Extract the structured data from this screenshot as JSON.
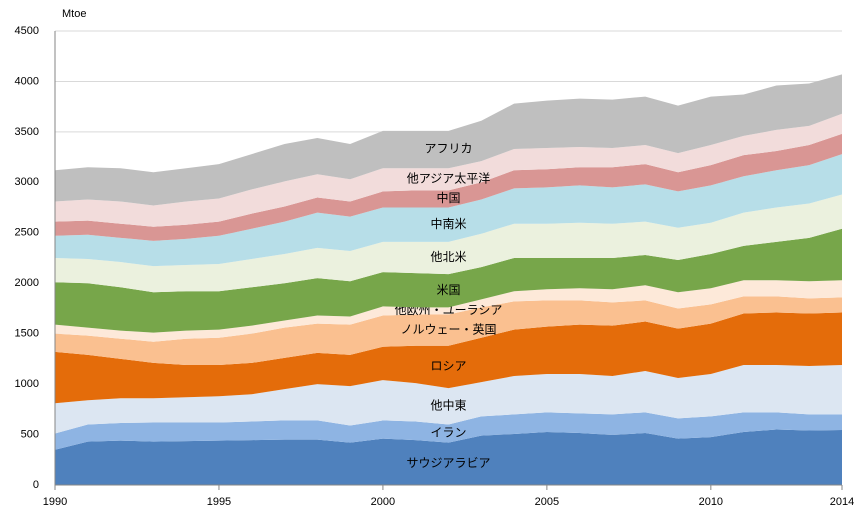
{
  "chart_data": {
    "type": "stacked_area",
    "y_unit": "Mtoe",
    "x": [
      1990,
      1991,
      1992,
      1993,
      1994,
      1995,
      1996,
      1997,
      1998,
      1999,
      2000,
      2001,
      2002,
      2003,
      2004,
      2005,
      2006,
      2007,
      2008,
      2009,
      2010,
      2011,
      2012,
      2013,
      2014
    ],
    "xlim": [
      1990,
      2014
    ],
    "xticks": [
      1990,
      1995,
      2000,
      2005,
      2010,
      2014
    ],
    "ylim": [
      0,
      4500
    ],
    "yticks": [
      0,
      500,
      1000,
      1500,
      2000,
      2500,
      3000,
      3500,
      4000,
      4500
    ],
    "grid": true,
    "series": [
      {
        "name": "サウジアラビア",
        "color": "#4f81bd",
        "values": [
          350,
          430,
          440,
          430,
          435,
          440,
          445,
          450,
          450,
          420,
          460,
          445,
          420,
          490,
          505,
          525,
          515,
          495,
          515,
          460,
          475,
          525,
          550,
          540,
          545
        ]
      },
      {
        "name": "イラン",
        "color": "#8eb4e3",
        "values": [
          160,
          170,
          175,
          190,
          185,
          180,
          185,
          190,
          190,
          170,
          180,
          185,
          180,
          190,
          195,
          195,
          195,
          205,
          205,
          200,
          205,
          195,
          170,
          160,
          155
        ]
      },
      {
        "name": "他中東",
        "color": "#dce6f2",
        "values": [
          300,
          240,
          245,
          240,
          250,
          260,
          270,
          310,
          360,
          390,
          400,
          380,
          360,
          340,
          380,
          380,
          390,
          380,
          410,
          400,
          420,
          470,
          470,
          480,
          490
        ]
      },
      {
        "name": "ロシア",
        "color": "#e46c0a",
        "values": [
          510,
          450,
          390,
          350,
          320,
          310,
          310,
          310,
          310,
          310,
          330,
          370,
          420,
          440,
          460,
          470,
          490,
          500,
          490,
          490,
          500,
          510,
          520,
          520,
          520
        ]
      },
      {
        "name": "ノルウェー・英国",
        "color": "#fac090",
        "values": [
          180,
          190,
          200,
          210,
          260,
          270,
          290,
          300,
          290,
          300,
          310,
          310,
          310,
          300,
          280,
          260,
          240,
          230,
          210,
          200,
          190,
          170,
          160,
          150,
          150
        ]
      },
      {
        "name": "他欧州・ユーラシア",
        "color": "#fde9d9",
        "values": [
          90,
          80,
          80,
          90,
          80,
          80,
          80,
          70,
          80,
          80,
          90,
          70,
          70,
          80,
          100,
          110,
          120,
          130,
          150,
          160,
          160,
          160,
          160,
          170,
          170
        ]
      },
      {
        "name": "米国",
        "color": "#77a64a",
        "values": [
          420,
          440,
          430,
          400,
          390,
          380,
          380,
          370,
          370,
          350,
          340,
          340,
          330,
          320,
          330,
          310,
          300,
          310,
          300,
          320,
          340,
          340,
          380,
          430,
          510
        ]
      },
      {
        "name": "他北米",
        "color": "#ebf1de",
        "values": [
          240,
          240,
          250,
          260,
          260,
          270,
          280,
          290,
          300,
          300,
          300,
          310,
          320,
          330,
          340,
          340,
          350,
          340,
          330,
          320,
          310,
          330,
          340,
          340,
          340
        ]
      },
      {
        "name": "中南米",
        "color": "#b7dee8",
        "values": [
          220,
          240,
          240,
          250,
          260,
          280,
          300,
          320,
          350,
          340,
          340,
          340,
          340,
          340,
          350,
          360,
          370,
          360,
          370,
          360,
          370,
          360,
          370,
          380,
          400
        ]
      },
      {
        "name": "中国",
        "color": "#d99694",
        "values": [
          140,
          140,
          140,
          140,
          140,
          140,
          150,
          150,
          150,
          150,
          160,
          170,
          170,
          170,
          180,
          180,
          180,
          200,
          200,
          190,
          200,
          210,
          190,
          200,
          200
        ]
      },
      {
        "name": "他アジア太平洋",
        "color": "#f2dcdb",
        "values": [
          200,
          210,
          220,
          210,
          230,
          230,
          240,
          250,
          230,
          220,
          230,
          220,
          220,
          210,
          210,
          210,
          200,
          190,
          190,
          190,
          200,
          190,
          210,
          190,
          200
        ]
      },
      {
        "name": "アフリカ",
        "color": "#bfbfbf",
        "values": [
          310,
          320,
          330,
          330,
          330,
          340,
          350,
          370,
          360,
          350,
          370,
          370,
          370,
          400,
          450,
          470,
          480,
          480,
          480,
          470,
          480,
          410,
          440,
          420,
          390
        ]
      }
    ]
  }
}
